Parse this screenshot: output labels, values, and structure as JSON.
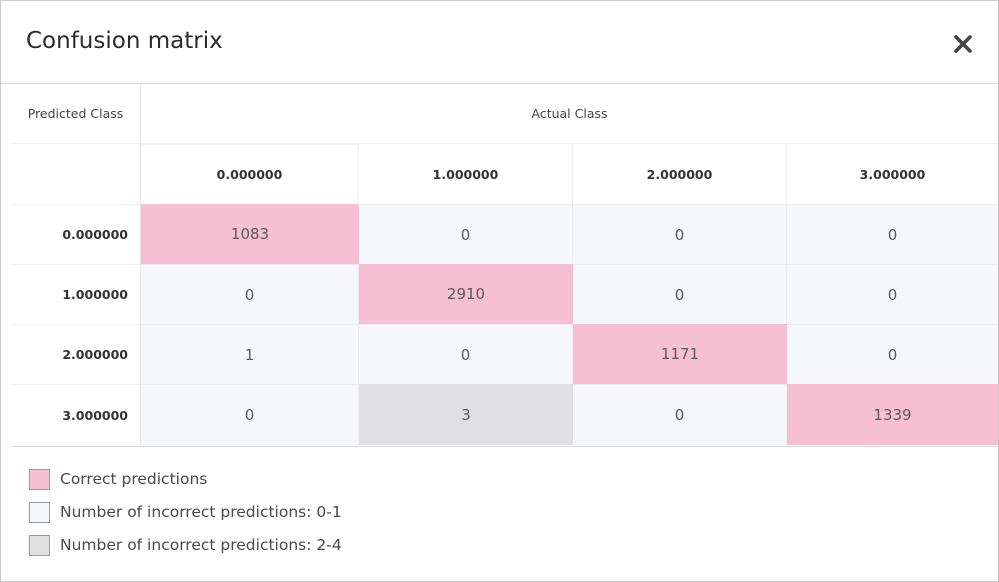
{
  "dialog": {
    "title": "Confusion matrix",
    "close_icon": "close-icon"
  },
  "matrix": {
    "row_axis_label": "Predicted Class",
    "col_axis_label": "Actual Class",
    "col_headers": [
      "0.000000",
      "1.000000",
      "2.000000",
      "3.000000"
    ],
    "row_headers": [
      "0.000000",
      "1.000000",
      "2.000000",
      "3.000000"
    ],
    "rows": [
      [
        "1083",
        "0",
        "0",
        "0"
      ],
      [
        "0",
        "2910",
        "0",
        "0"
      ],
      [
        "1",
        "0",
        "1171",
        "0"
      ],
      [
        "0",
        "3",
        "0",
        "1339"
      ]
    ]
  },
  "legend": {
    "correct": "Correct predictions",
    "low": "Number of incorrect predictions: 0-1",
    "high": "Number of incorrect predictions: 2-4"
  },
  "colors": {
    "correct": "#f6bfd2",
    "low": "#f6f7fb",
    "high": "#e0e0e3"
  }
}
